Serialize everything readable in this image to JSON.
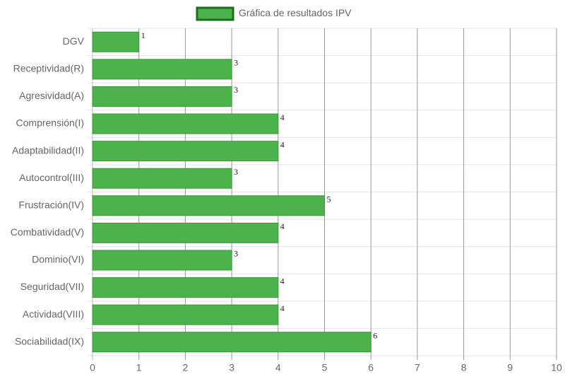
{
  "chart_data": {
    "type": "hbar",
    "categories": [
      "DGV",
      "Receptividad(R)",
      "Agresividad(A)",
      "Comprensión(I)",
      "Adaptabilidad(II)",
      "Autocontrol(III)",
      "Frustración(IV)",
      "Combatividad(V)",
      "Dominio(VI)",
      "Seguridad(VII)",
      "Actividad(VIII)",
      "Sociabilidad(IX)"
    ],
    "series": [
      {
        "name": "Gráfica de resultados IPV",
        "color": "#4cb24c",
        "values": [
          1,
          3,
          3,
          4,
          4,
          3,
          5,
          4,
          3,
          4,
          4,
          6
        ]
      }
    ],
    "xlim": [
      0,
      10
    ],
    "xticks": [
      0,
      1,
      2,
      3,
      4,
      5,
      6,
      7,
      8,
      9,
      10
    ],
    "grid": true,
    "legend": "top"
  }
}
